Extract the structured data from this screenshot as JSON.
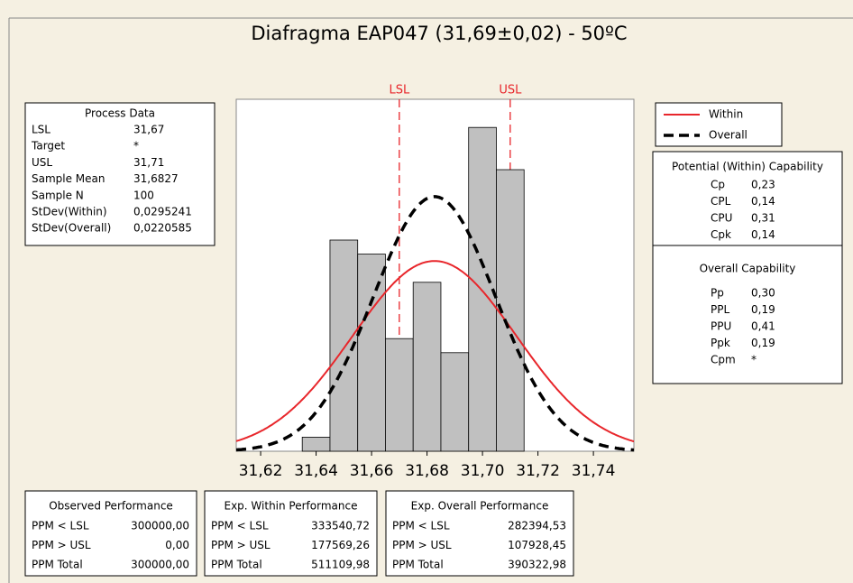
{
  "chart_data": {
    "type": "histogram",
    "title": "Diafragma EAP047 (31,69±0,02) - 50ºC",
    "bins": [
      31.635,
      31.645,
      31.655,
      31.665,
      31.675,
      31.685,
      31.695,
      31.705,
      31.715
    ],
    "values": [
      1,
      15,
      14,
      8,
      12,
      7,
      23,
      20
    ],
    "color": "#c0c0c0",
    "xlim": [
      31.6112,
      31.7546
    ],
    "xticks": [
      {
        "value": 31.62,
        "label": "31,62"
      },
      {
        "value": 31.64,
        "label": "31,64"
      },
      {
        "value": 31.66,
        "label": "31,66"
      },
      {
        "value": 31.68,
        "label": "31,68"
      },
      {
        "value": 31.7,
        "label": "31,70"
      },
      {
        "value": 31.72,
        "label": "31,72"
      },
      {
        "value": 31.74,
        "label": "31,74"
      }
    ],
    "ylim": [
      0,
      25
    ],
    "spec_limits": [
      "LSL",
      "USL"
    ],
    "spec_color": "#e8262b",
    "series": [
      {
        "name": "Within",
        "color": "#e8262b"
      },
      {
        "name": "Overall",
        "color": "#000000",
        "dashed": true
      }
    ]
  },
  "process_data": {
    "title": "Process Data",
    "rows": [
      [
        "LSL",
        "31,67"
      ],
      [
        "Target",
        "*"
      ],
      [
        "USL",
        "31,71"
      ],
      [
        "Sample Mean",
        "31,6827"
      ],
      [
        "Sample N",
        "100"
      ],
      [
        "StDev(Within)",
        "0,0295241"
      ],
      [
        "StDev(Overall)",
        "0,0220585"
      ]
    ]
  },
  "potential_capability": {
    "title": "Potential (Within) Capability",
    "rows": [
      [
        "Cp",
        "0,23"
      ],
      [
        "CPL",
        "0,14"
      ],
      [
        "CPU",
        "0,31"
      ],
      [
        "Cpk",
        "0,14"
      ]
    ]
  },
  "overall_capability": {
    "title": "Overall Capability",
    "rows": [
      [
        "Pp",
        "0,30"
      ],
      [
        "PPL",
        "0,19"
      ],
      [
        "PPU",
        "0,41"
      ],
      [
        "Ppk",
        "0,19"
      ],
      [
        "Cpm",
        "*"
      ]
    ]
  },
  "performance": [
    {
      "title": "Observed Performance",
      "rows": [
        [
          "PPM < LSL",
          "300000,00"
        ],
        [
          "PPM > USL",
          "0,00"
        ],
        [
          "PPM Total",
          "300000,00"
        ]
      ]
    },
    {
      "title": "Exp. Within Performance",
      "rows": [
        [
          "PPM < LSL",
          "333540,72"
        ],
        [
          "PPM > USL",
          "177569,26"
        ],
        [
          "PPM Total",
          "511109,98"
        ]
      ]
    },
    {
      "title": "Exp. Overall Performance",
      "rows": [
        [
          "PPM < LSL",
          "282394,53"
        ],
        [
          "PPM > USL",
          "107928,45"
        ],
        [
          "PPM Total",
          "390322,98"
        ]
      ]
    }
  ]
}
